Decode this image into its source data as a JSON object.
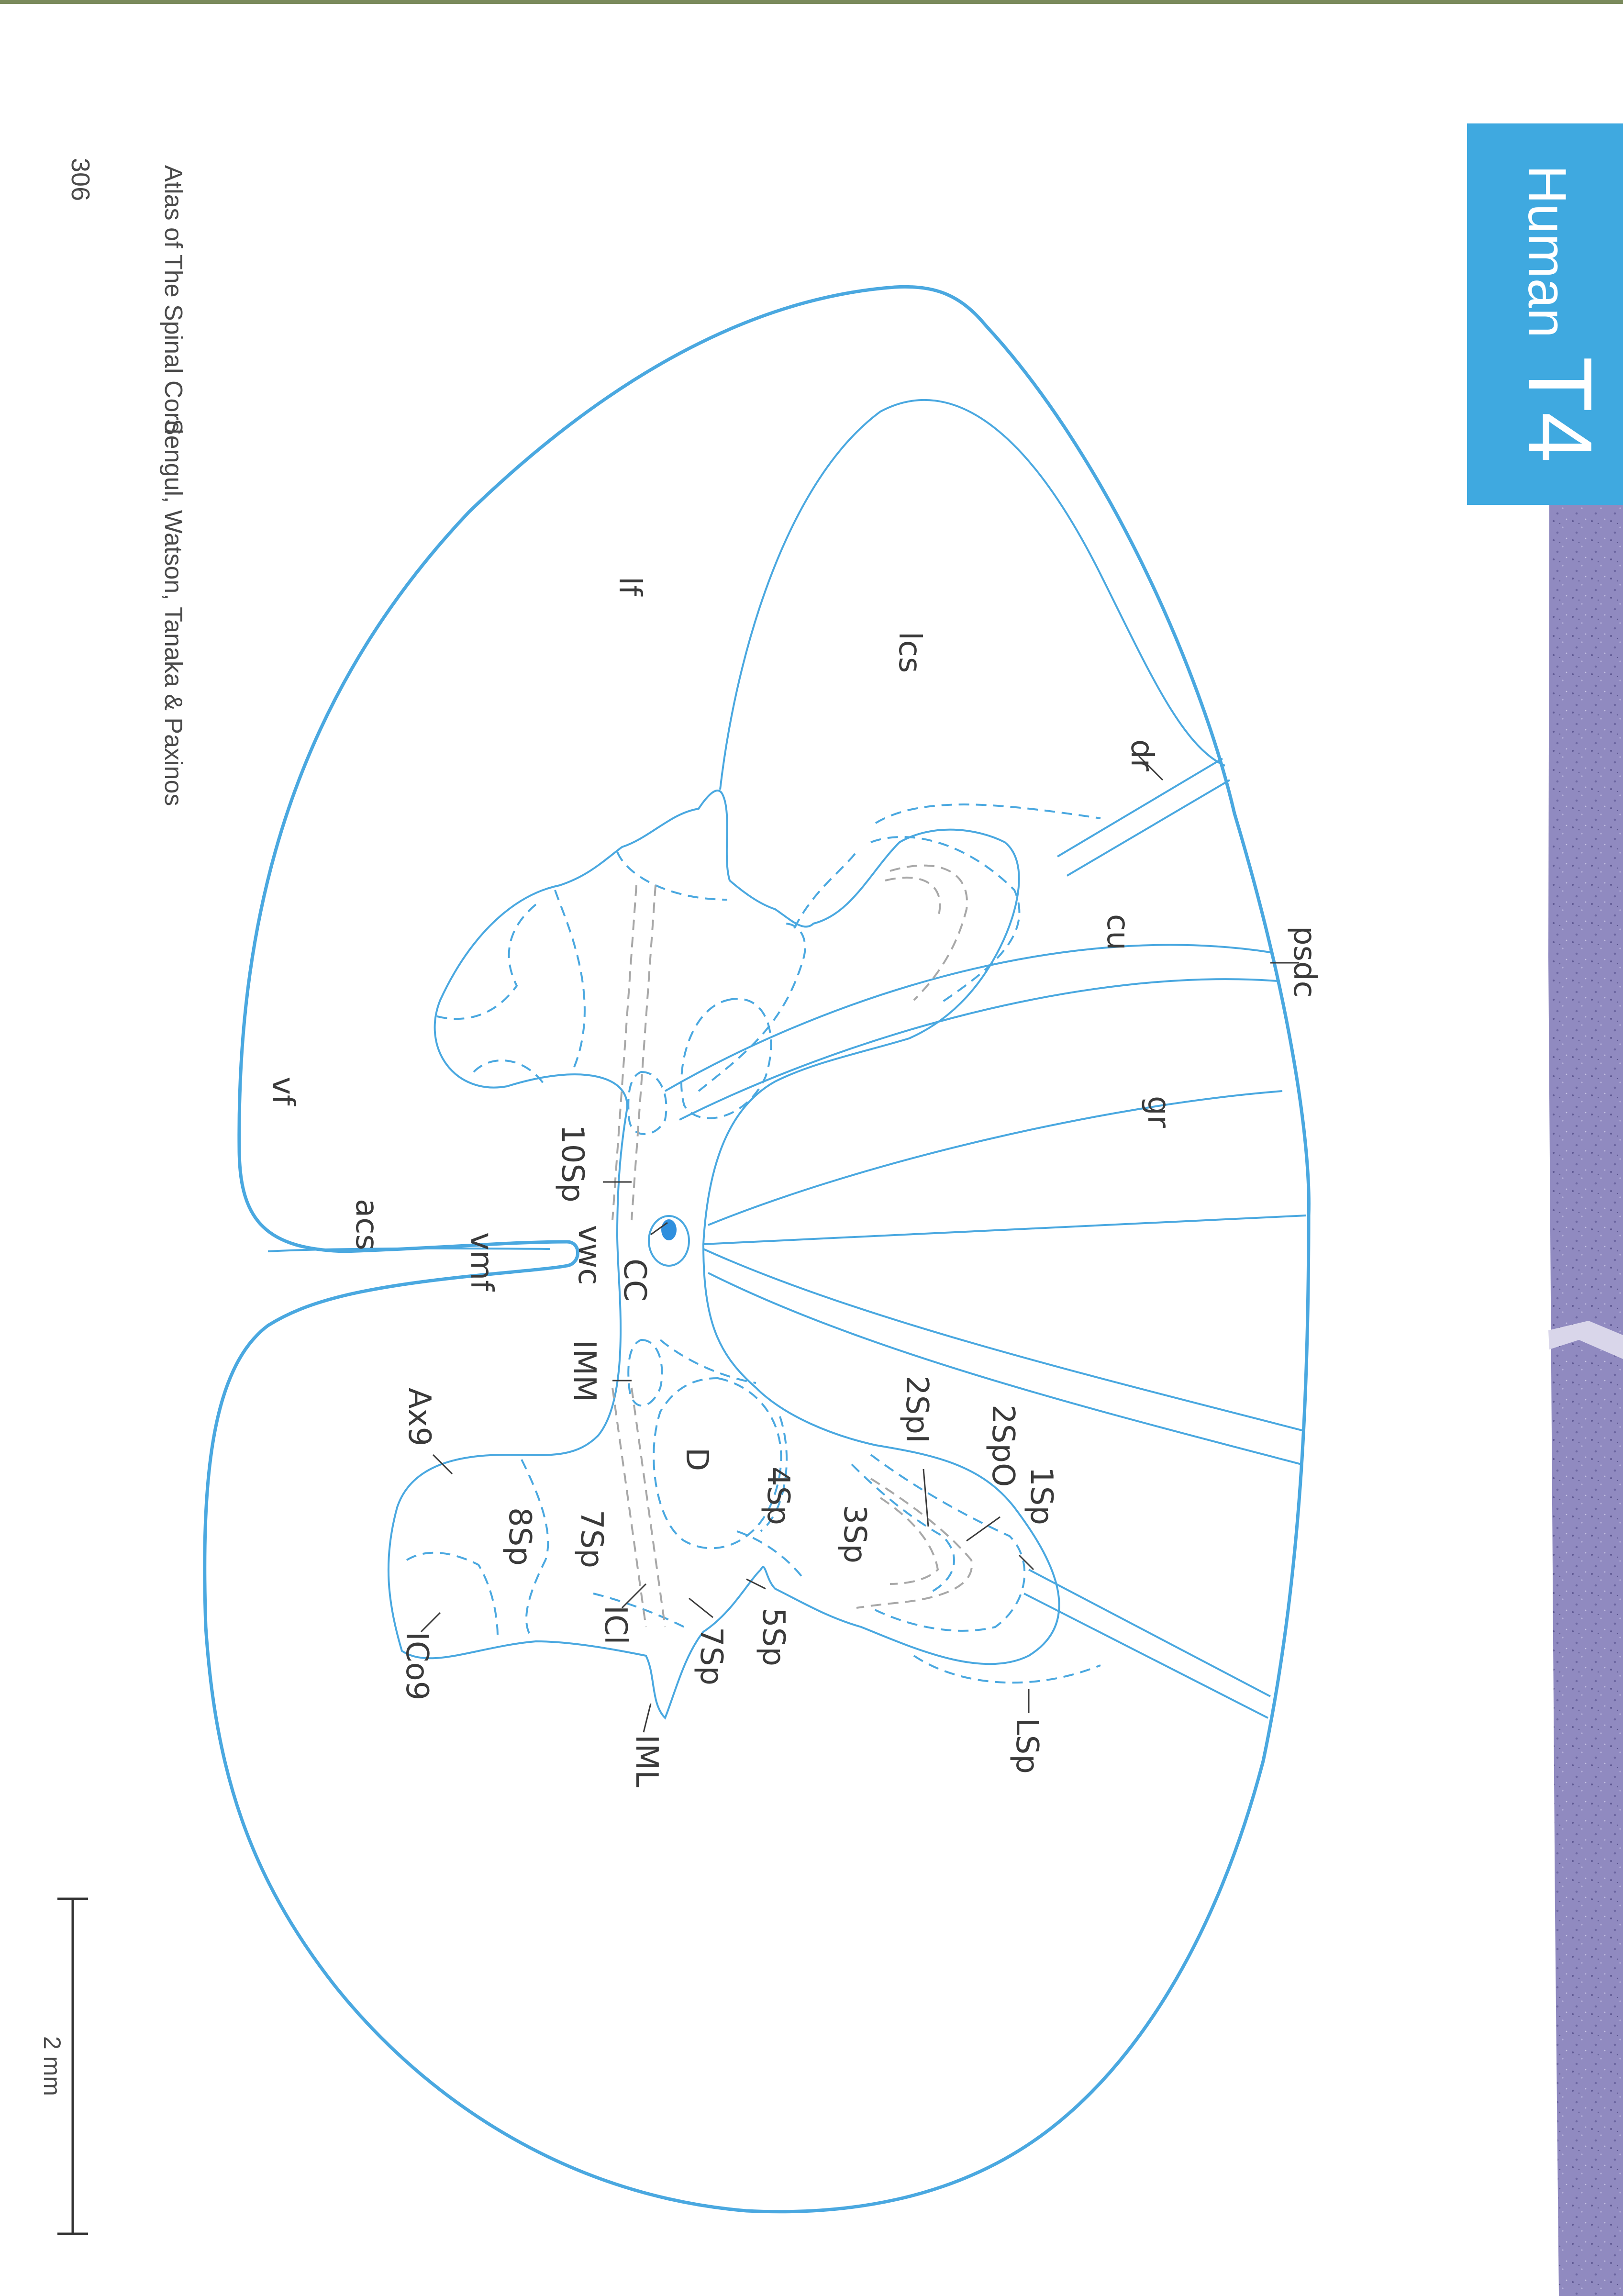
{
  "page_number": "306",
  "running_header": {
    "title": "Atlas of The Spinal Cord",
    "authors": "Sengul, Watson, Tanaka & Paxinos"
  },
  "section_tab": {
    "species": "Human",
    "level": "T4",
    "color": "#3fa9e0"
  },
  "scale_bar": {
    "label": "2 mm"
  },
  "structure_labels": {
    "lf": "lf",
    "lcs": "lcs",
    "dr": "dr",
    "cu": "cu",
    "psdc": "psdc",
    "gr": "gr",
    "vf": "vf",
    "acs": "acs",
    "vmf": "vmf",
    "vwc": "vwc",
    "sp10": "10Sp",
    "cc": "CC",
    "imm": "IMM",
    "ax9": "Ax9",
    "d": "D",
    "sp2i": "2SpI",
    "sp2o": "2SpO",
    "sp1": "1Sp",
    "sp4": "4Sp",
    "sp3": "3Sp",
    "sp8": "8Sp",
    "sp7a": "7Sp",
    "sp7b": "7Sp",
    "sp5": "5Sp",
    "icl": "ICl",
    "ico9": "ICo9",
    "iml": "IML",
    "lsp": "LSp"
  },
  "colors": {
    "outline": "#4aa8e0",
    "gray_matter_dash": "#4aa8e0",
    "lamina_dash_gray": "#a8a8a8",
    "central_canal": "#2f8fde",
    "histology_strip": "#8f89bd"
  }
}
